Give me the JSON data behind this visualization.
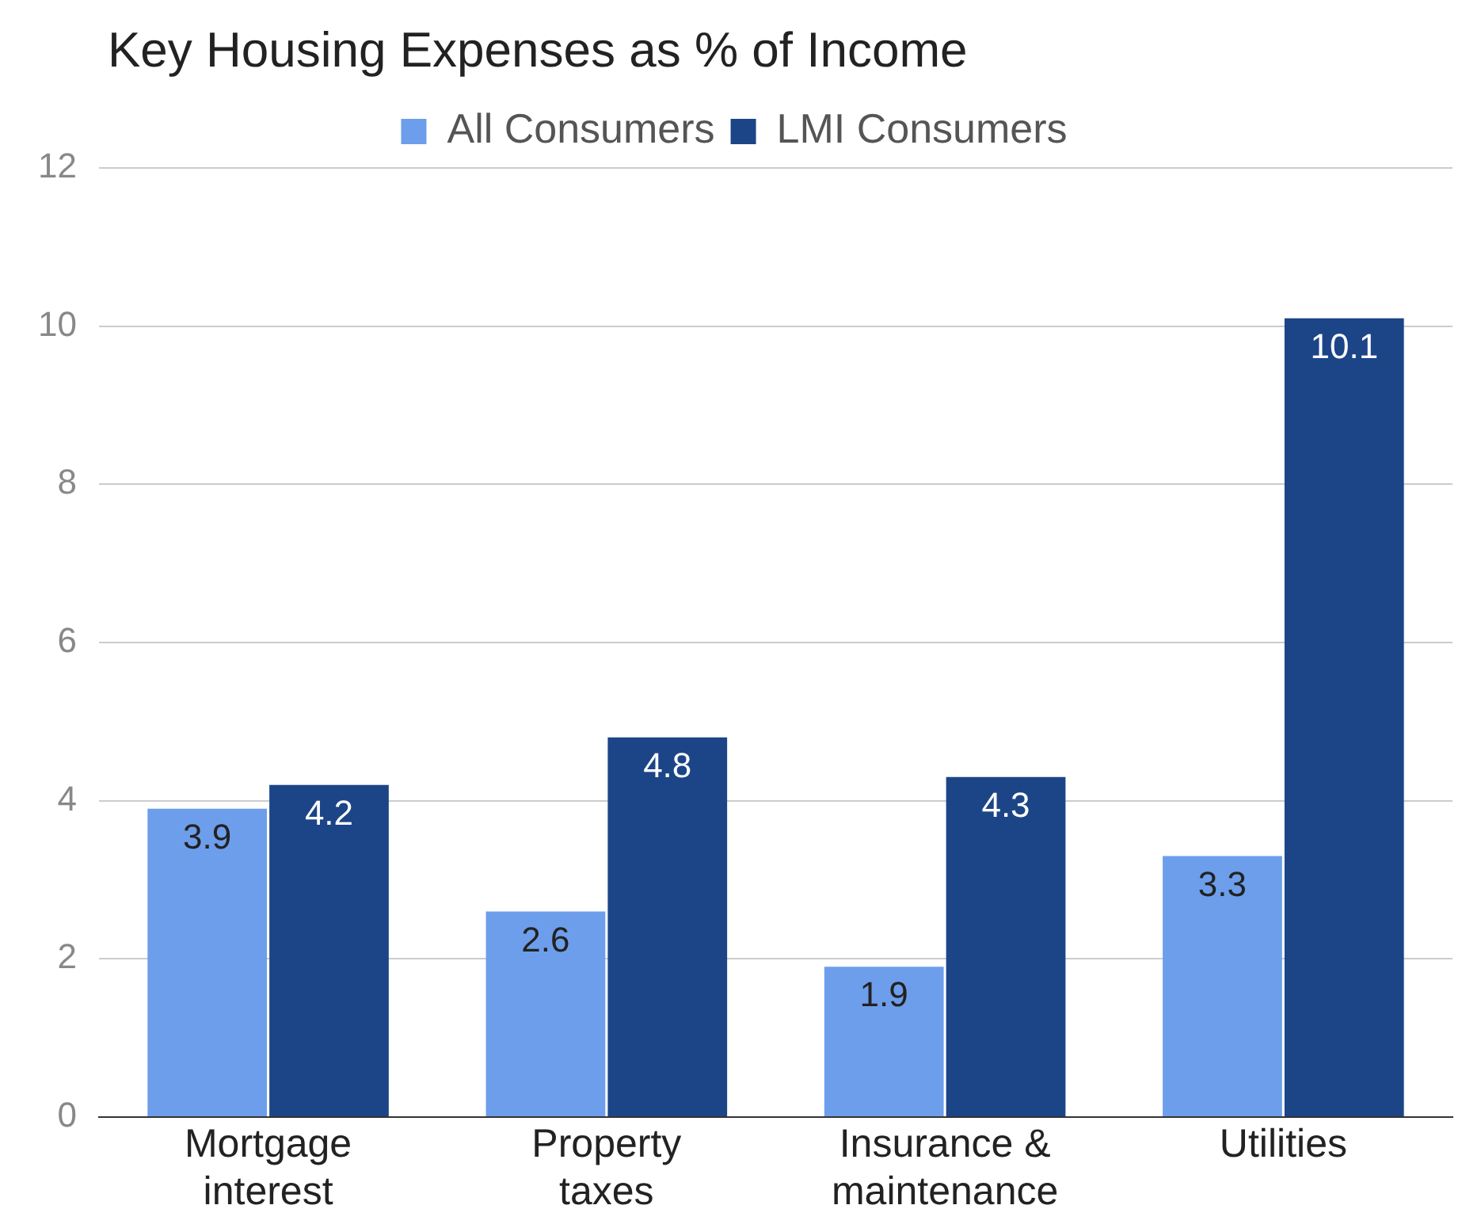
{
  "chart_data": {
    "type": "bar",
    "title": "Key Housing Expenses as % of Income",
    "categories": [
      "Mortgage interest",
      "Property taxes",
      "Insurance & maintenance",
      "Utilities"
    ],
    "series": [
      {
        "name": "All Consumers",
        "color": "#6d9eeb",
        "values": [
          3.9,
          2.6,
          1.9,
          3.3
        ]
      },
      {
        "name": "LMI Consumers",
        "color": "#1c4587",
        "values": [
          4.2,
          4.8,
          4.3,
          10.1
        ]
      }
    ],
    "ylim": [
      0,
      12
    ],
    "yticks": [
      0,
      2,
      4,
      6,
      8,
      10,
      12
    ],
    "grid": "y",
    "legend": "top",
    "data_labels": true
  }
}
